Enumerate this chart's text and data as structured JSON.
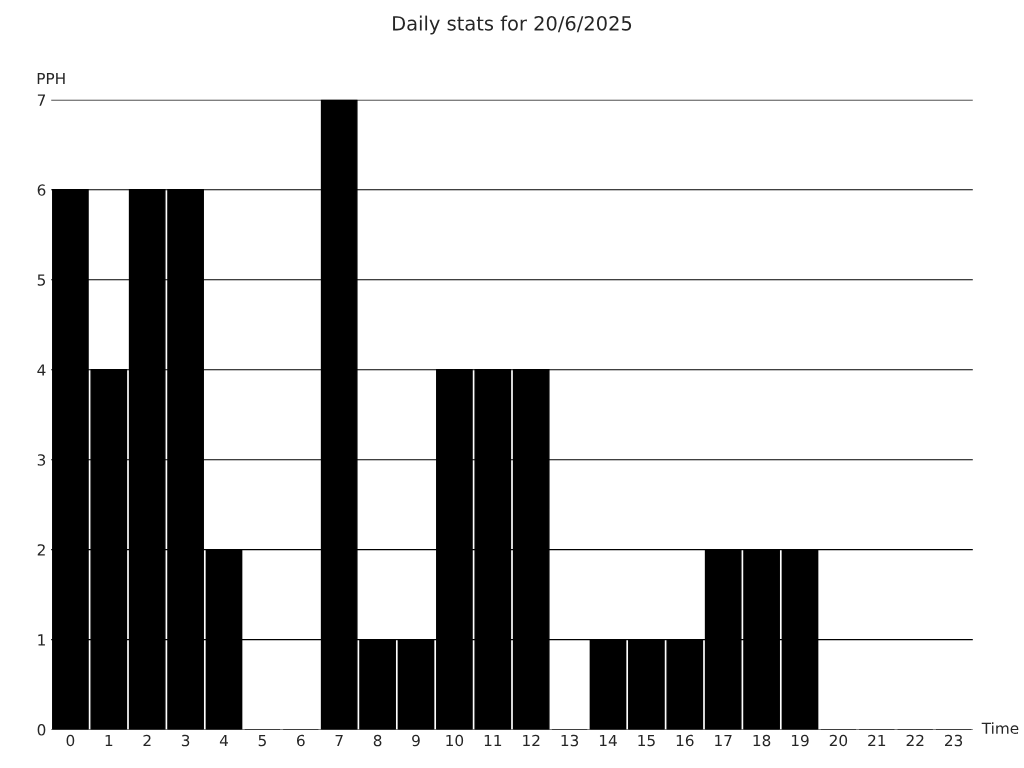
{
  "chart_data": {
    "type": "bar",
    "title": "Daily stats for 20/6/2025",
    "xlabel": "Time",
    "ylabel": "PPH",
    "categories": [
      "0",
      "1",
      "2",
      "3",
      "4",
      "5",
      "6",
      "7",
      "8",
      "9",
      "10",
      "11",
      "12",
      "13",
      "14",
      "15",
      "16",
      "17",
      "18",
      "19",
      "20",
      "21",
      "22",
      "23"
    ],
    "values": [
      6,
      4,
      6,
      6,
      2,
      0,
      0,
      7,
      1,
      1,
      4,
      4,
      4,
      0,
      1,
      1,
      1,
      2,
      2,
      2,
      0,
      0,
      0,
      0
    ],
    "color": "#000000",
    "ylim": [
      0,
      7
    ],
    "yticks": [
      0,
      1,
      2,
      3,
      4,
      5,
      6,
      7
    ],
    "grid": "y"
  }
}
